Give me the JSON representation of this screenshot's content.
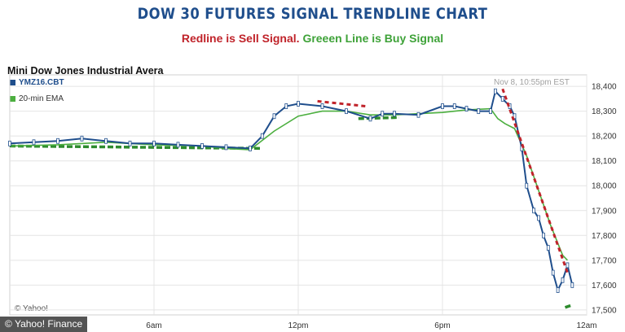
{
  "header": {
    "title": "DOW 30 FUTURES SIGNAL TRENDLINE CHART",
    "subtitle_red": "Redline is Sell Signal.",
    "subtitle_green": "Greeen Line is Buy Signal"
  },
  "panel": {
    "title": "Mini Dow Jones Industrial Avera",
    "timestamp": "Nov 8, 10:55pm EST",
    "source_label": "© Yahoo!"
  },
  "footer": {
    "credit": "© Yahoo! Finance"
  },
  "colors": {
    "price": "#1f4e8c",
    "ema": "#4caf3f",
    "sell": "#c0232a",
    "buy": "#2e8b2e",
    "title": "#1f4e8c"
  },
  "chart_data": {
    "type": "line",
    "title": "DOW 30 FUTURES SIGNAL TRENDLINE CHART",
    "subtitle": "Redline is Sell Signal. Greeen Line is Buy Signal",
    "x_ticks": [
      "6am",
      "12pm",
      "6pm",
      "12am"
    ],
    "y_ticks": [
      17500,
      17600,
      17700,
      17800,
      17900,
      18000,
      18100,
      18200,
      18300,
      18400
    ],
    "ylim": [
      17480,
      18420
    ],
    "xlim": [
      0,
      24
    ],
    "legend": [
      "YMZ16.CBT",
      "20-min EMA"
    ],
    "series": [
      {
        "name": "YMZ16.CBT",
        "x": [
          0,
          1,
          2,
          3,
          4,
          5,
          6,
          7,
          8,
          9,
          10,
          10.5,
          11,
          11.5,
          12,
          13,
          14,
          15,
          15.5,
          16,
          17,
          18,
          18.5,
          19,
          19.5,
          20,
          20.2,
          20.5,
          20.8,
          21,
          21.3,
          21.5,
          21.8,
          22,
          22.2,
          22.4,
          22.6,
          22.8,
          23,
          23.2,
          23.4
        ],
        "values": [
          18170,
          18175,
          18180,
          18190,
          18180,
          18170,
          18170,
          18165,
          18160,
          18155,
          18150,
          18200,
          18280,
          18320,
          18330,
          18320,
          18300,
          18270,
          18290,
          18290,
          18285,
          18320,
          18320,
          18310,
          18300,
          18300,
          18380,
          18350,
          18320,
          18280,
          18150,
          18000,
          17900,
          17870,
          17800,
          17750,
          17650,
          17580,
          17620,
          17680,
          17600
        ]
      },
      {
        "name": "20-min EMA",
        "x": [
          0,
          2,
          4,
          6,
          8,
          9,
          10,
          11,
          12,
          13,
          14,
          15,
          16,
          17,
          18,
          19,
          20,
          20.3,
          20.6,
          21,
          21.5,
          22,
          22.5,
          23,
          23.2
        ],
        "values": [
          18160,
          18165,
          18175,
          18165,
          18160,
          18150,
          18145,
          18220,
          18280,
          18300,
          18300,
          18285,
          18285,
          18290,
          18295,
          18305,
          18310,
          18270,
          18250,
          18230,
          18120,
          17980,
          17840,
          17720,
          17700
        ]
      }
    ],
    "annotations": [
      {
        "type": "sell-signal",
        "label": "Redline is Sell Signal",
        "x": [
          12.8,
          14.8
        ],
        "values": [
          18340,
          18320
        ]
      },
      {
        "type": "sell-signal",
        "label": "Redline is Sell Signal",
        "x": [
          20.5,
          23.2
        ],
        "values": [
          18390,
          17650
        ]
      },
      {
        "type": "buy-signal",
        "label": "Greeen Line is Buy Signal",
        "x": [
          0,
          10.5
        ],
        "values": [
          18160,
          18150
        ]
      },
      {
        "type": "buy-signal",
        "label": "Greeen Line is Buy Signal",
        "x": [
          14.5,
          16.2
        ],
        "values": [
          18270,
          18275
        ]
      },
      {
        "type": "buy-signal",
        "label": "Greeen Line is Buy Signal",
        "x": [
          23.1,
          23.4
        ],
        "values": [
          17510,
          17520
        ]
      }
    ]
  }
}
